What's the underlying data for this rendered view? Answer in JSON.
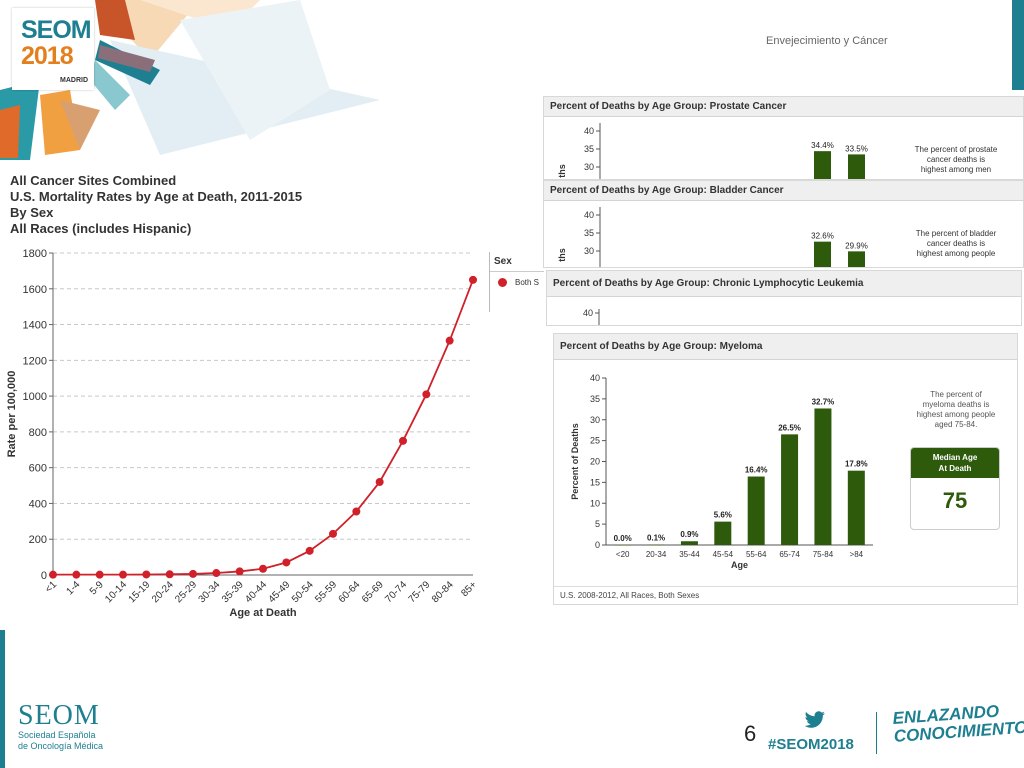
{
  "header": {
    "logo": {
      "name": "SEOM",
      "year": "2018",
      "city": "MADRID"
    },
    "slide_title": "Envejecimiento y Cáncer"
  },
  "chart_data": [
    {
      "type": "line",
      "title": [
        "All Cancer Sites Combined",
        "U.S. Mortality Rates by Age at Death, 2011-2015",
        "By Sex",
        "All Races (includes Hispanic)"
      ],
      "xlabel": "Age at Death",
      "ylabel": "Rate per 100,000",
      "ylim": [
        0,
        1800
      ],
      "yticks": [
        0,
        200,
        400,
        600,
        800,
        1000,
        1200,
        1400,
        1600,
        1800
      ],
      "categories": [
        "<1",
        "1-4",
        "5-9",
        "10-14",
        "15-19",
        "20-24",
        "25-29",
        "30-34",
        "35-39",
        "40-44",
        "45-49",
        "50-54",
        "55-59",
        "60-64",
        "65-69",
        "70-74",
        "75-79",
        "80-84",
        "85+"
      ],
      "series": [
        {
          "name": "Both S",
          "color": "#d0202a",
          "values": [
            2,
            2,
            2,
            2,
            3,
            4,
            6,
            11,
            20,
            35,
            70,
            135,
            230,
            355,
            520,
            750,
            1010,
            1310,
            1650
          ]
        }
      ],
      "legend": {
        "title": "Sex",
        "placement": "right"
      },
      "grid": true
    },
    {
      "type": "bar",
      "title": "Percent of Deaths by Age Group: Prostate Cancer",
      "visible_yticks": [
        30,
        35,
        40
      ],
      "ylabel": "ths",
      "visible_bars": [
        {
          "value": 34.4,
          "label": "34.4%"
        },
        {
          "value": 33.5,
          "label": "33.5%"
        }
      ],
      "note": [
        "The percent of prostate",
        "cancer deaths is",
        "highest among men"
      ]
    },
    {
      "type": "bar",
      "title": "Percent of Deaths by Age Group: Bladder Cancer",
      "visible_yticks": [
        30,
        35,
        40
      ],
      "ylabel": "ths",
      "visible_bars": [
        {
          "value": 32.6,
          "label": "32.6%"
        },
        {
          "value": 29.9,
          "label": "29.9%"
        }
      ],
      "note": [
        "The percent of bladder",
        "cancer deaths is",
        "highest among people"
      ]
    },
    {
      "type": "bar",
      "title": "Percent of Deaths by Age Group: Chronic Lymphocytic Leukemia",
      "visible_yticks": [
        40
      ]
    },
    {
      "type": "bar",
      "title": "Percent of Deaths by Age Group: Myeloma",
      "xlabel": "Age",
      "ylabel": "Percent of Deaths",
      "ylim": [
        0,
        40
      ],
      "yticks": [
        0,
        5,
        10,
        15,
        20,
        25,
        30,
        35,
        40
      ],
      "categories": [
        "<20",
        "20-34",
        "35-44",
        "45-54",
        "55-64",
        "65-74",
        "75-84",
        ">84"
      ],
      "values": [
        0.0,
        0.1,
        0.9,
        5.6,
        16.4,
        26.5,
        32.7,
        17.8
      ],
      "labels": [
        "0.0%",
        "0.1%",
        "0.9%",
        "5.6%",
        "16.4%",
        "26.5%",
        "32.7%",
        "17.8%"
      ],
      "color": "#2e5a0c",
      "note": [
        "The percent of",
        "myeloma deaths is",
        "highest among people",
        "aged 75-84."
      ],
      "median": {
        "label_line1": "Median Age",
        "label_line2": "At Death",
        "value": "75"
      },
      "footnote": "U.S. 2008-2012, All Races, Both Sexes"
    }
  ],
  "footer": {
    "brand": "SEOM",
    "brand_sub_1": "Sociedad Española",
    "brand_sub_2": "de Oncología Médica",
    "page_number": "6",
    "hashtag": "#SEOM2018",
    "slogan_1": "ENLAZANDO",
    "slogan_2": "CONOCIMIENTO"
  }
}
